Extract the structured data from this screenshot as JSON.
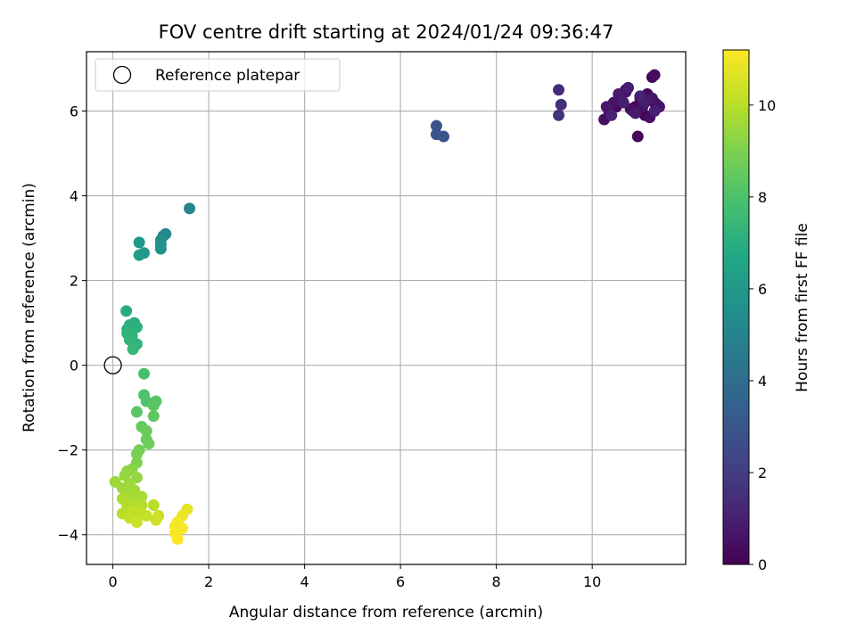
{
  "chart_data": {
    "type": "scatter",
    "title": "FOV centre drift starting at 2024/01/24 09:36:47",
    "xlabel": "Angular distance from reference (arcmin)",
    "ylabel": "Rotation from reference (arcmin)",
    "xlim": [
      -0.55,
      11.95
    ],
    "ylim": [
      -4.7,
      7.4
    ],
    "xticks": [
      0,
      2,
      4,
      6,
      8,
      10
    ],
    "yticks": [
      -4,
      -2,
      0,
      2,
      4,
      6
    ],
    "grid": true,
    "legend": {
      "placement": "top-left",
      "entries": [
        "Reference platepar"
      ]
    },
    "reference_point": {
      "x": 0,
      "y": 0
    },
    "colorbar": {
      "label": "Hours from first FF file",
      "colormap": "viridis",
      "range": [
        0,
        11.2
      ],
      "ticks": [
        0,
        2,
        4,
        6,
        8,
        10
      ]
    },
    "series": [
      {
        "colored_by": "hours",
        "points": [
          {
            "x": 10.7,
            "y": 6.5,
            "h": 0.1
          },
          {
            "x": 10.9,
            "y": 6.1,
            "h": 0.1
          },
          {
            "x": 11.1,
            "y": 5.9,
            "h": 0.1
          },
          {
            "x": 11.3,
            "y": 6.2,
            "h": 0.1
          },
          {
            "x": 11.0,
            "y": 6.3,
            "h": 0.2
          },
          {
            "x": 10.5,
            "y": 6.1,
            "h": 0.2
          },
          {
            "x": 10.95,
            "y": 5.4,
            "h": 0.2
          },
          {
            "x": 11.25,
            "y": 6.8,
            "h": 0.2
          },
          {
            "x": 11.35,
            "y": 6.15,
            "h": 0.3
          },
          {
            "x": 10.35,
            "y": 6.0,
            "h": 0.3
          },
          {
            "x": 10.8,
            "y": 6.05,
            "h": 0.3
          },
          {
            "x": 11.15,
            "y": 6.4,
            "h": 0.3
          },
          {
            "x": 10.25,
            "y": 5.8,
            "h": 0.4
          },
          {
            "x": 11.3,
            "y": 6.85,
            "h": 0.4
          },
          {
            "x": 11.2,
            "y": 5.85,
            "h": 0.4
          },
          {
            "x": 10.6,
            "y": 6.3,
            "h": 0.5
          },
          {
            "x": 10.85,
            "y": 6.0,
            "h": 0.5
          },
          {
            "x": 11.05,
            "y": 6.1,
            "h": 0.5
          },
          {
            "x": 10.45,
            "y": 6.2,
            "h": 0.6
          },
          {
            "x": 10.7,
            "y": 6.45,
            "h": 0.6
          },
          {
            "x": 11.4,
            "y": 6.1,
            "h": 0.6
          },
          {
            "x": 10.3,
            "y": 6.1,
            "h": 0.7
          },
          {
            "x": 11.25,
            "y": 6.3,
            "h": 0.7
          },
          {
            "x": 10.9,
            "y": 5.95,
            "h": 0.8
          },
          {
            "x": 10.55,
            "y": 6.4,
            "h": 0.8
          },
          {
            "x": 11.1,
            "y": 6.2,
            "h": 0.9
          },
          {
            "x": 10.75,
            "y": 6.55,
            "h": 0.9
          },
          {
            "x": 11.3,
            "y": 6.0,
            "h": 1.0
          },
          {
            "x": 10.65,
            "y": 6.2,
            "h": 1.0
          },
          {
            "x": 10.4,
            "y": 5.9,
            "h": 1.1
          },
          {
            "x": 11.0,
            "y": 6.35,
            "h": 1.1
          },
          {
            "x": 9.3,
            "y": 6.5,
            "h": 1.4
          },
          {
            "x": 9.35,
            "y": 6.15,
            "h": 1.5
          },
          {
            "x": 9.3,
            "y": 5.9,
            "h": 1.6
          },
          {
            "x": 6.75,
            "y": 5.65,
            "h": 2.8
          },
          {
            "x": 6.75,
            "y": 5.45,
            "h": 2.9
          },
          {
            "x": 6.9,
            "y": 5.4,
            "h": 3.0
          },
          {
            "x": 1.6,
            "y": 3.7,
            "h": 5.0
          },
          {
            "x": 1.1,
            "y": 3.1,
            "h": 5.2
          },
          {
            "x": 1.05,
            "y": 3.05,
            "h": 5.3
          },
          {
            "x": 1.0,
            "y": 2.95,
            "h": 5.4
          },
          {
            "x": 1.0,
            "y": 2.85,
            "h": 5.5
          },
          {
            "x": 1.0,
            "y": 2.75,
            "h": 5.6
          },
          {
            "x": 0.55,
            "y": 2.9,
            "h": 5.9
          },
          {
            "x": 0.65,
            "y": 2.65,
            "h": 6.0
          },
          {
            "x": 0.55,
            "y": 2.6,
            "h": 6.1
          },
          {
            "x": 0.28,
            "y": 1.28,
            "h": 6.9
          },
          {
            "x": 0.45,
            "y": 1.0,
            "h": 7.0
          },
          {
            "x": 0.3,
            "y": 0.85,
            "h": 7.0
          },
          {
            "x": 0.35,
            "y": 0.95,
            "h": 7.1
          },
          {
            "x": 0.5,
            "y": 0.9,
            "h": 7.1
          },
          {
            "x": 0.3,
            "y": 0.75,
            "h": 7.2
          },
          {
            "x": 0.4,
            "y": 0.7,
            "h": 7.2
          },
          {
            "x": 0.35,
            "y": 0.6,
            "h": 7.3
          },
          {
            "x": 0.5,
            "y": 0.5,
            "h": 7.3
          },
          {
            "x": 0.42,
            "y": 0.38,
            "h": 7.4
          },
          {
            "x": 0.65,
            "y": -0.2,
            "h": 7.9
          },
          {
            "x": 0.65,
            "y": -0.7,
            "h": 8.0
          },
          {
            "x": 0.7,
            "y": -0.85,
            "h": 8.1
          },
          {
            "x": 0.9,
            "y": -0.85,
            "h": 8.2
          },
          {
            "x": 0.85,
            "y": -0.95,
            "h": 8.3
          },
          {
            "x": 0.5,
            "y": -1.1,
            "h": 8.3
          },
          {
            "x": 0.85,
            "y": -1.2,
            "h": 8.4
          },
          {
            "x": 0.6,
            "y": -1.45,
            "h": 8.5
          },
          {
            "x": 0.7,
            "y": -1.55,
            "h": 8.6
          },
          {
            "x": 0.7,
            "y": -1.75,
            "h": 8.6
          },
          {
            "x": 0.75,
            "y": -1.85,
            "h": 8.7
          },
          {
            "x": 0.55,
            "y": -2.0,
            "h": 8.8
          },
          {
            "x": 0.5,
            "y": -2.1,
            "h": 8.9
          },
          {
            "x": 0.5,
            "y": -2.3,
            "h": 9.0
          },
          {
            "x": 0.4,
            "y": -2.45,
            "h": 9.2
          },
          {
            "x": 0.3,
            "y": -2.5,
            "h": 9.3
          },
          {
            "x": 0.25,
            "y": -2.6,
            "h": 9.4
          },
          {
            "x": 0.5,
            "y": -2.65,
            "h": 9.4
          },
          {
            "x": 0.05,
            "y": -2.75,
            "h": 9.5
          },
          {
            "x": 0.35,
            "y": -2.8,
            "h": 9.5
          },
          {
            "x": 0.2,
            "y": -2.9,
            "h": 9.6
          },
          {
            "x": 0.45,
            "y": -2.95,
            "h": 9.6
          },
          {
            "x": 0.35,
            "y": -3.05,
            "h": 9.7
          },
          {
            "x": 0.6,
            "y": -3.1,
            "h": 9.7
          },
          {
            "x": 0.2,
            "y": -3.15,
            "h": 9.8
          },
          {
            "x": 0.5,
            "y": -3.2,
            "h": 9.8
          },
          {
            "x": 0.3,
            "y": -3.3,
            "h": 9.9
          },
          {
            "x": 0.6,
            "y": -3.3,
            "h": 9.9
          },
          {
            "x": 0.85,
            "y": -3.3,
            "h": 10.0
          },
          {
            "x": 0.2,
            "y": -3.5,
            "h": 10.0
          },
          {
            "x": 0.4,
            "y": -3.45,
            "h": 10.1
          },
          {
            "x": 0.55,
            "y": -3.45,
            "h": 10.1
          },
          {
            "x": 0.7,
            "y": -3.55,
            "h": 10.2
          },
          {
            "x": 0.35,
            "y": -3.6,
            "h": 10.2
          },
          {
            "x": 0.95,
            "y": -3.55,
            "h": 10.3
          },
          {
            "x": 0.5,
            "y": -3.7,
            "h": 10.3
          },
          {
            "x": 0.9,
            "y": -3.65,
            "h": 10.4
          },
          {
            "x": 1.55,
            "y": -3.4,
            "h": 10.8
          },
          {
            "x": 1.45,
            "y": -3.55,
            "h": 10.9
          },
          {
            "x": 1.35,
            "y": -3.7,
            "h": 11.0
          },
          {
            "x": 1.3,
            "y": -3.8,
            "h": 11.0
          },
          {
            "x": 1.45,
            "y": -3.85,
            "h": 11.1
          },
          {
            "x": 1.3,
            "y": -3.95,
            "h": 11.1
          },
          {
            "x": 1.35,
            "y": -4.1,
            "h": 11.2
          }
        ]
      }
    ]
  }
}
